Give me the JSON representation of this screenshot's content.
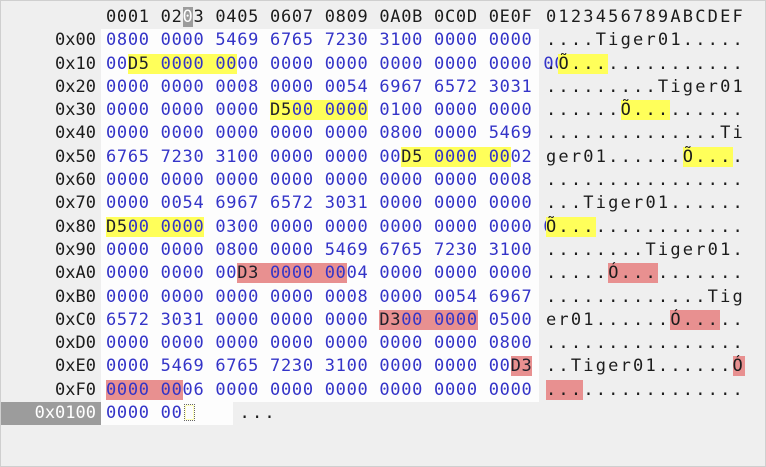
{
  "app": {
    "view": "hex-editor"
  },
  "colors": {
    "page_bg": "#efefef",
    "hex_area_bg": "#fdfdfd",
    "hex_text": "#3434c8",
    "plain_text": "#1c1c1c",
    "highlight_yellow": "#ffff5a",
    "highlight_pink": "#e89090",
    "highlight_gray": "#9c9c9c",
    "changed_byte_text": "#20202a",
    "active_offset_bg": "#9c9c9c",
    "active_offset_text": "#ffffff"
  },
  "header": {
    "hex_segments": [
      {
        "t": "0001 02"
      },
      {
        "t": "0",
        "hl": "gray"
      },
      {
        "t": "3 0405 0607 0809 0A0B 0C0D 0E0F"
      }
    ],
    "ascii_columns": "0123456789ABCDEF"
  },
  "rows": [
    {
      "offset": "0x00",
      "hex": [
        {
          "t": "0800 0000 5469 6765 7230 3100 0000 0000"
        }
      ],
      "ascii": [
        {
          "t": "....Tiger01....."
        }
      ]
    },
    {
      "offset": "0x10",
      "hex": [
        {
          "t": "00"
        },
        {
          "t": "D5",
          "hl": "yellow",
          "dark": true
        },
        {
          "t": " 0000 00",
          "hl": "yellow"
        },
        {
          "t": "00 0000 0000 0000 0000 0000 0000"
        }
      ],
      "ascii": [
        {
          "t": "."
        },
        {
          "t": "Õ...",
          "hl": "yellow"
        },
        {
          "t": "..........."
        }
      ]
    },
    {
      "offset": "0x20",
      "hex": [
        {
          "t": "0000 0000 0008 0000 0054 6967 6572 3031"
        }
      ],
      "ascii": [
        {
          "t": ".........Tiger01"
        }
      ]
    },
    {
      "offset": "0x30",
      "hex": [
        {
          "t": "0000 0000 0000 "
        },
        {
          "t": "D5",
          "hl": "yellow",
          "dark": true
        },
        {
          "t": "00 0000",
          "hl": "yellow"
        },
        {
          "t": " 0100 0000 0000"
        }
      ],
      "ascii": [
        {
          "t": "......"
        },
        {
          "t": "Õ...",
          "hl": "yellow"
        },
        {
          "t": "......"
        }
      ]
    },
    {
      "offset": "0x40",
      "hex": [
        {
          "t": "0000 0000 0000 0000 0000 0800 0000 5469"
        }
      ],
      "ascii": [
        {
          "t": "..............Ti"
        }
      ]
    },
    {
      "offset": "0x50",
      "hex": [
        {
          "t": "6765 7230 3100 0000 0000 00"
        },
        {
          "t": "D5",
          "hl": "yellow",
          "dark": true
        },
        {
          "t": " 0000 00",
          "hl": "yellow"
        },
        {
          "t": "02"
        }
      ],
      "ascii": [
        {
          "t": "ger01......"
        },
        {
          "t": "Õ...",
          "hl": "yellow"
        },
        {
          "t": "."
        }
      ]
    },
    {
      "offset": "0x60",
      "hex": [
        {
          "t": "0000 0000 0000 0000 0000 0000 0000 0008"
        }
      ],
      "ascii": [
        {
          "t": "................"
        }
      ]
    },
    {
      "offset": "0x70",
      "hex": [
        {
          "t": "0000 0054 6967 6572 3031 0000 0000 0000"
        }
      ],
      "ascii": [
        {
          "t": "...Tiger01......"
        }
      ]
    },
    {
      "offset": "0x80",
      "hex": [
        {
          "t": "D5",
          "hl": "yellow",
          "dark": true
        },
        {
          "t": "00 0000",
          "hl": "yellow"
        },
        {
          "t": " 0300 0000 0000 0000 0000 0000 0000"
        }
      ],
      "ascii": [
        {
          "t": "Õ...",
          "hl": "yellow"
        },
        {
          "t": "............"
        }
      ]
    },
    {
      "offset": "0x90",
      "hex": [
        {
          "t": "0000 0000 0800 0000 5469 6765 7230 3100"
        }
      ],
      "ascii": [
        {
          "t": "........Tiger01."
        }
      ]
    },
    {
      "offset": "0xA0",
      "hex": [
        {
          "t": "0000 0000 00"
        },
        {
          "t": "D3",
          "hl": "pink",
          "dark": true
        },
        {
          "t": " 0000 00",
          "hl": "pink"
        },
        {
          "t": "04 0000 0000 0000"
        }
      ],
      "ascii": [
        {
          "t": "....."
        },
        {
          "t": "Ó...",
          "hl": "pink"
        },
        {
          "t": "......."
        }
      ]
    },
    {
      "offset": "0xB0",
      "hex": [
        {
          "t": "0000 0000 0000 0000 0008 0000 0054 6967"
        }
      ],
      "ascii": [
        {
          "t": ".............Tig"
        }
      ]
    },
    {
      "offset": "0xC0",
      "hex": [
        {
          "t": "6572 3031 0000 0000 0000 "
        },
        {
          "t": "D3",
          "hl": "pink",
          "dark": true
        },
        {
          "t": "00 0000",
          "hl": "pink"
        },
        {
          "t": " 0500"
        }
      ],
      "ascii": [
        {
          "t": "er01......"
        },
        {
          "t": "Ó...",
          "hl": "pink"
        },
        {
          "t": ".."
        }
      ]
    },
    {
      "offset": "0xD0",
      "hex": [
        {
          "t": "0000 0000 0000 0000 0000 0000 0000 0800"
        }
      ],
      "ascii": [
        {
          "t": "................"
        }
      ]
    },
    {
      "offset": "0xE0",
      "hex": [
        {
          "t": "0000 5469 6765 7230 3100 0000 0000 00"
        },
        {
          "t": "D3",
          "hl": "pink",
          "dark": true
        }
      ],
      "ascii": [
        {
          "t": "..Tiger01......"
        },
        {
          "t": "Ó",
          "hl": "pink"
        }
      ]
    },
    {
      "offset": "0xF0",
      "hex": [
        {
          "t": "0000 00",
          "hl": "pink"
        },
        {
          "t": "06 0000 0000 0000 0000 0000 0000"
        }
      ],
      "ascii": [
        {
          "t": "...",
          "hl": "pink"
        },
        {
          "t": "............."
        }
      ]
    },
    {
      "offset": "0x0100",
      "active": true,
      "cursor": true,
      "partial": true,
      "hex": [
        {
          "t": "0000 00"
        }
      ],
      "ascii": [
        {
          "t": "..."
        }
      ]
    }
  ]
}
